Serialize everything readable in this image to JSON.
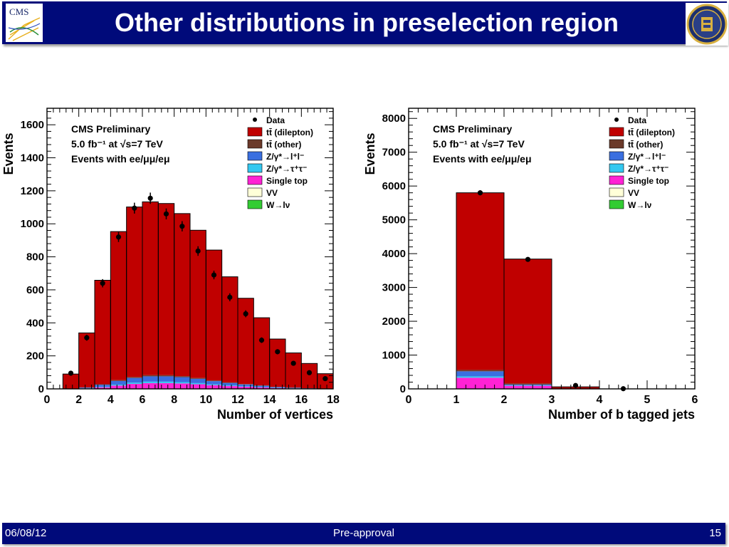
{
  "slide": {
    "title": "Other distributions in preselection region",
    "logo_left_text": "CMS",
    "footer_date": "06/08/12",
    "footer_center": "Pre-approval",
    "footer_page": "15",
    "colors": {
      "header_bg": "#000a7a",
      "footer_bg": "#000a7a",
      "text": "#ffffff"
    }
  },
  "chart_data": [
    {
      "type": "bar",
      "stacked": true,
      "title": "",
      "ylabel": "Events",
      "xlabel": "Number of vertices",
      "xlim": [
        0,
        18
      ],
      "ylim": [
        0,
        1700
      ],
      "xticks": [
        0,
        2,
        4,
        6,
        8,
        10,
        12,
        14,
        16,
        18
      ],
      "yticks": [
        0,
        200,
        400,
        600,
        800,
        1000,
        1200,
        1400,
        1600
      ],
      "annotation": [
        "CMS Preliminary",
        "5.0 fb⁻¹ at √s=7 TeV",
        "Events with ee/μμ/eμ"
      ],
      "legend_position": "top-right",
      "legend": [
        {
          "label": "Data",
          "marker": "point",
          "color": "#000000"
        },
        {
          "label": "tt̄ (dilepton)",
          "color": "#c00000"
        },
        {
          "label": "tt̄ (other)",
          "color": "#6b3a2a"
        },
        {
          "label": "Z/γ*→l⁺l⁻",
          "color": "#3a6fe0"
        },
        {
          "label": "Z/γ*→τ⁺τ⁻",
          "color": "#33c8f0"
        },
        {
          "label": "Single top",
          "color": "#ff22d4"
        },
        {
          "label": "VV",
          "color": "#ffffd8"
        },
        {
          "label": "W→lν",
          "color": "#33cc33"
        }
      ],
      "bin_edges": [
        0,
        1,
        2,
        3,
        4,
        5,
        6,
        7,
        8,
        9,
        10,
        11,
        12,
        13,
        14,
        15,
        16,
        17,
        18
      ],
      "series": [
        {
          "name": "Single top",
          "color": "#ff22d4",
          "values": [
            0,
            0,
            3,
            10,
            20,
            30,
            35,
            35,
            33,
            28,
            22,
            17,
            13,
            9,
            5,
            3,
            2,
            1
          ]
        },
        {
          "name": "Z/γ*→τ⁺τ⁻",
          "color": "#33c8f0",
          "values": [
            0,
            0,
            1,
            3,
            6,
            8,
            9,
            9,
            8,
            7,
            5,
            4,
            3,
            2,
            1,
            1,
            0,
            0
          ]
        },
        {
          "name": "Z/γ*→l⁺l⁻",
          "color": "#3a6fe0",
          "values": [
            0,
            0,
            4,
            12,
            22,
            28,
            32,
            32,
            30,
            26,
            20,
            15,
            11,
            8,
            5,
            3,
            2,
            1
          ]
        },
        {
          "name": "tt̄ (other)",
          "color": "#6b3a2a",
          "values": [
            0,
            0,
            1,
            3,
            5,
            6,
            7,
            7,
            6,
            5,
            4,
            3,
            2,
            2,
            1,
            1,
            0,
            0
          ]
        },
        {
          "name": "tt̄ (dilepton)",
          "color": "#c00000",
          "values": [
            0,
            90,
            330,
            630,
            900,
            1030,
            1050,
            1040,
            985,
            895,
            790,
            640,
            520,
            410,
            290,
            210,
            150,
            90
          ]
        }
      ],
      "data_points": {
        "x": [
          1.5,
          2.5,
          3.5,
          4.5,
          5.5,
          6.5,
          7.5,
          8.5,
          9.5,
          10.5,
          11.5,
          12.5,
          13.5,
          14.5,
          15.5,
          16.5,
          17.5
        ],
        "y": [
          95,
          310,
          640,
          920,
          1095,
          1155,
          1060,
          985,
          835,
          690,
          555,
          455,
          295,
          225,
          155,
          98,
          62
        ],
        "err": [
          10,
          18,
          25,
          30,
          33,
          34,
          33,
          31,
          29,
          26,
          24,
          21,
          17,
          15,
          12,
          10,
          8
        ]
      }
    },
    {
      "type": "bar",
      "stacked": true,
      "title": "",
      "ylabel": "Events",
      "xlabel": "Number of b tagged jets",
      "xlim": [
        0,
        6
      ],
      "ylim": [
        0,
        8300
      ],
      "xticks": [
        0,
        1,
        2,
        3,
        4,
        5,
        6
      ],
      "yticks": [
        0,
        1000,
        2000,
        3000,
        4000,
        5000,
        6000,
        7000,
        8000
      ],
      "annotation": [
        "CMS Preliminary",
        "5.0 fb⁻¹ at √s=7 TeV",
        "Events with ee/μμ/eμ"
      ],
      "legend_position": "top-right",
      "legend": [
        {
          "label": "Data",
          "marker": "point",
          "color": "#000000"
        },
        {
          "label": "tt̄ (dilepton)",
          "color": "#c00000"
        },
        {
          "label": "tt̄ (other)",
          "color": "#6b3a2a"
        },
        {
          "label": "Z/γ*→l⁺l⁻",
          "color": "#3a6fe0"
        },
        {
          "label": "Z/γ*→τ⁺τ⁻",
          "color": "#33c8f0"
        },
        {
          "label": "Single top",
          "color": "#ff22d4"
        },
        {
          "label": "VV",
          "color": "#ffffd8"
        },
        {
          "label": "W→lν",
          "color": "#33cc33"
        }
      ],
      "bin_edges": [
        0,
        1,
        2,
        3,
        4,
        5,
        6
      ],
      "series": [
        {
          "name": "Single top",
          "color": "#ff22d4",
          "values": [
            0,
            330,
            90,
            5,
            0,
            0
          ]
        },
        {
          "name": "Z/γ*→τ⁺τ⁻",
          "color": "#33c8f0",
          "values": [
            0,
            40,
            10,
            0,
            0,
            0
          ]
        },
        {
          "name": "Z/γ*→l⁺l⁻",
          "color": "#3a6fe0",
          "values": [
            0,
            150,
            30,
            2,
            0,
            0
          ]
        },
        {
          "name": "tt̄ (other)",
          "color": "#6b3a2a",
          "values": [
            0,
            40,
            30,
            3,
            0,
            0
          ]
        },
        {
          "name": "tt̄ (dilepton)",
          "color": "#c00000",
          "values": [
            0,
            5240,
            3680,
            50,
            0,
            0
          ]
        }
      ],
      "data_points": {
        "x": [
          1.5,
          2.5,
          3.5,
          4.5
        ],
        "y": [
          5800,
          3830,
          100,
          5
        ],
        "err": [
          76,
          62,
          10,
          3
        ]
      }
    }
  ]
}
